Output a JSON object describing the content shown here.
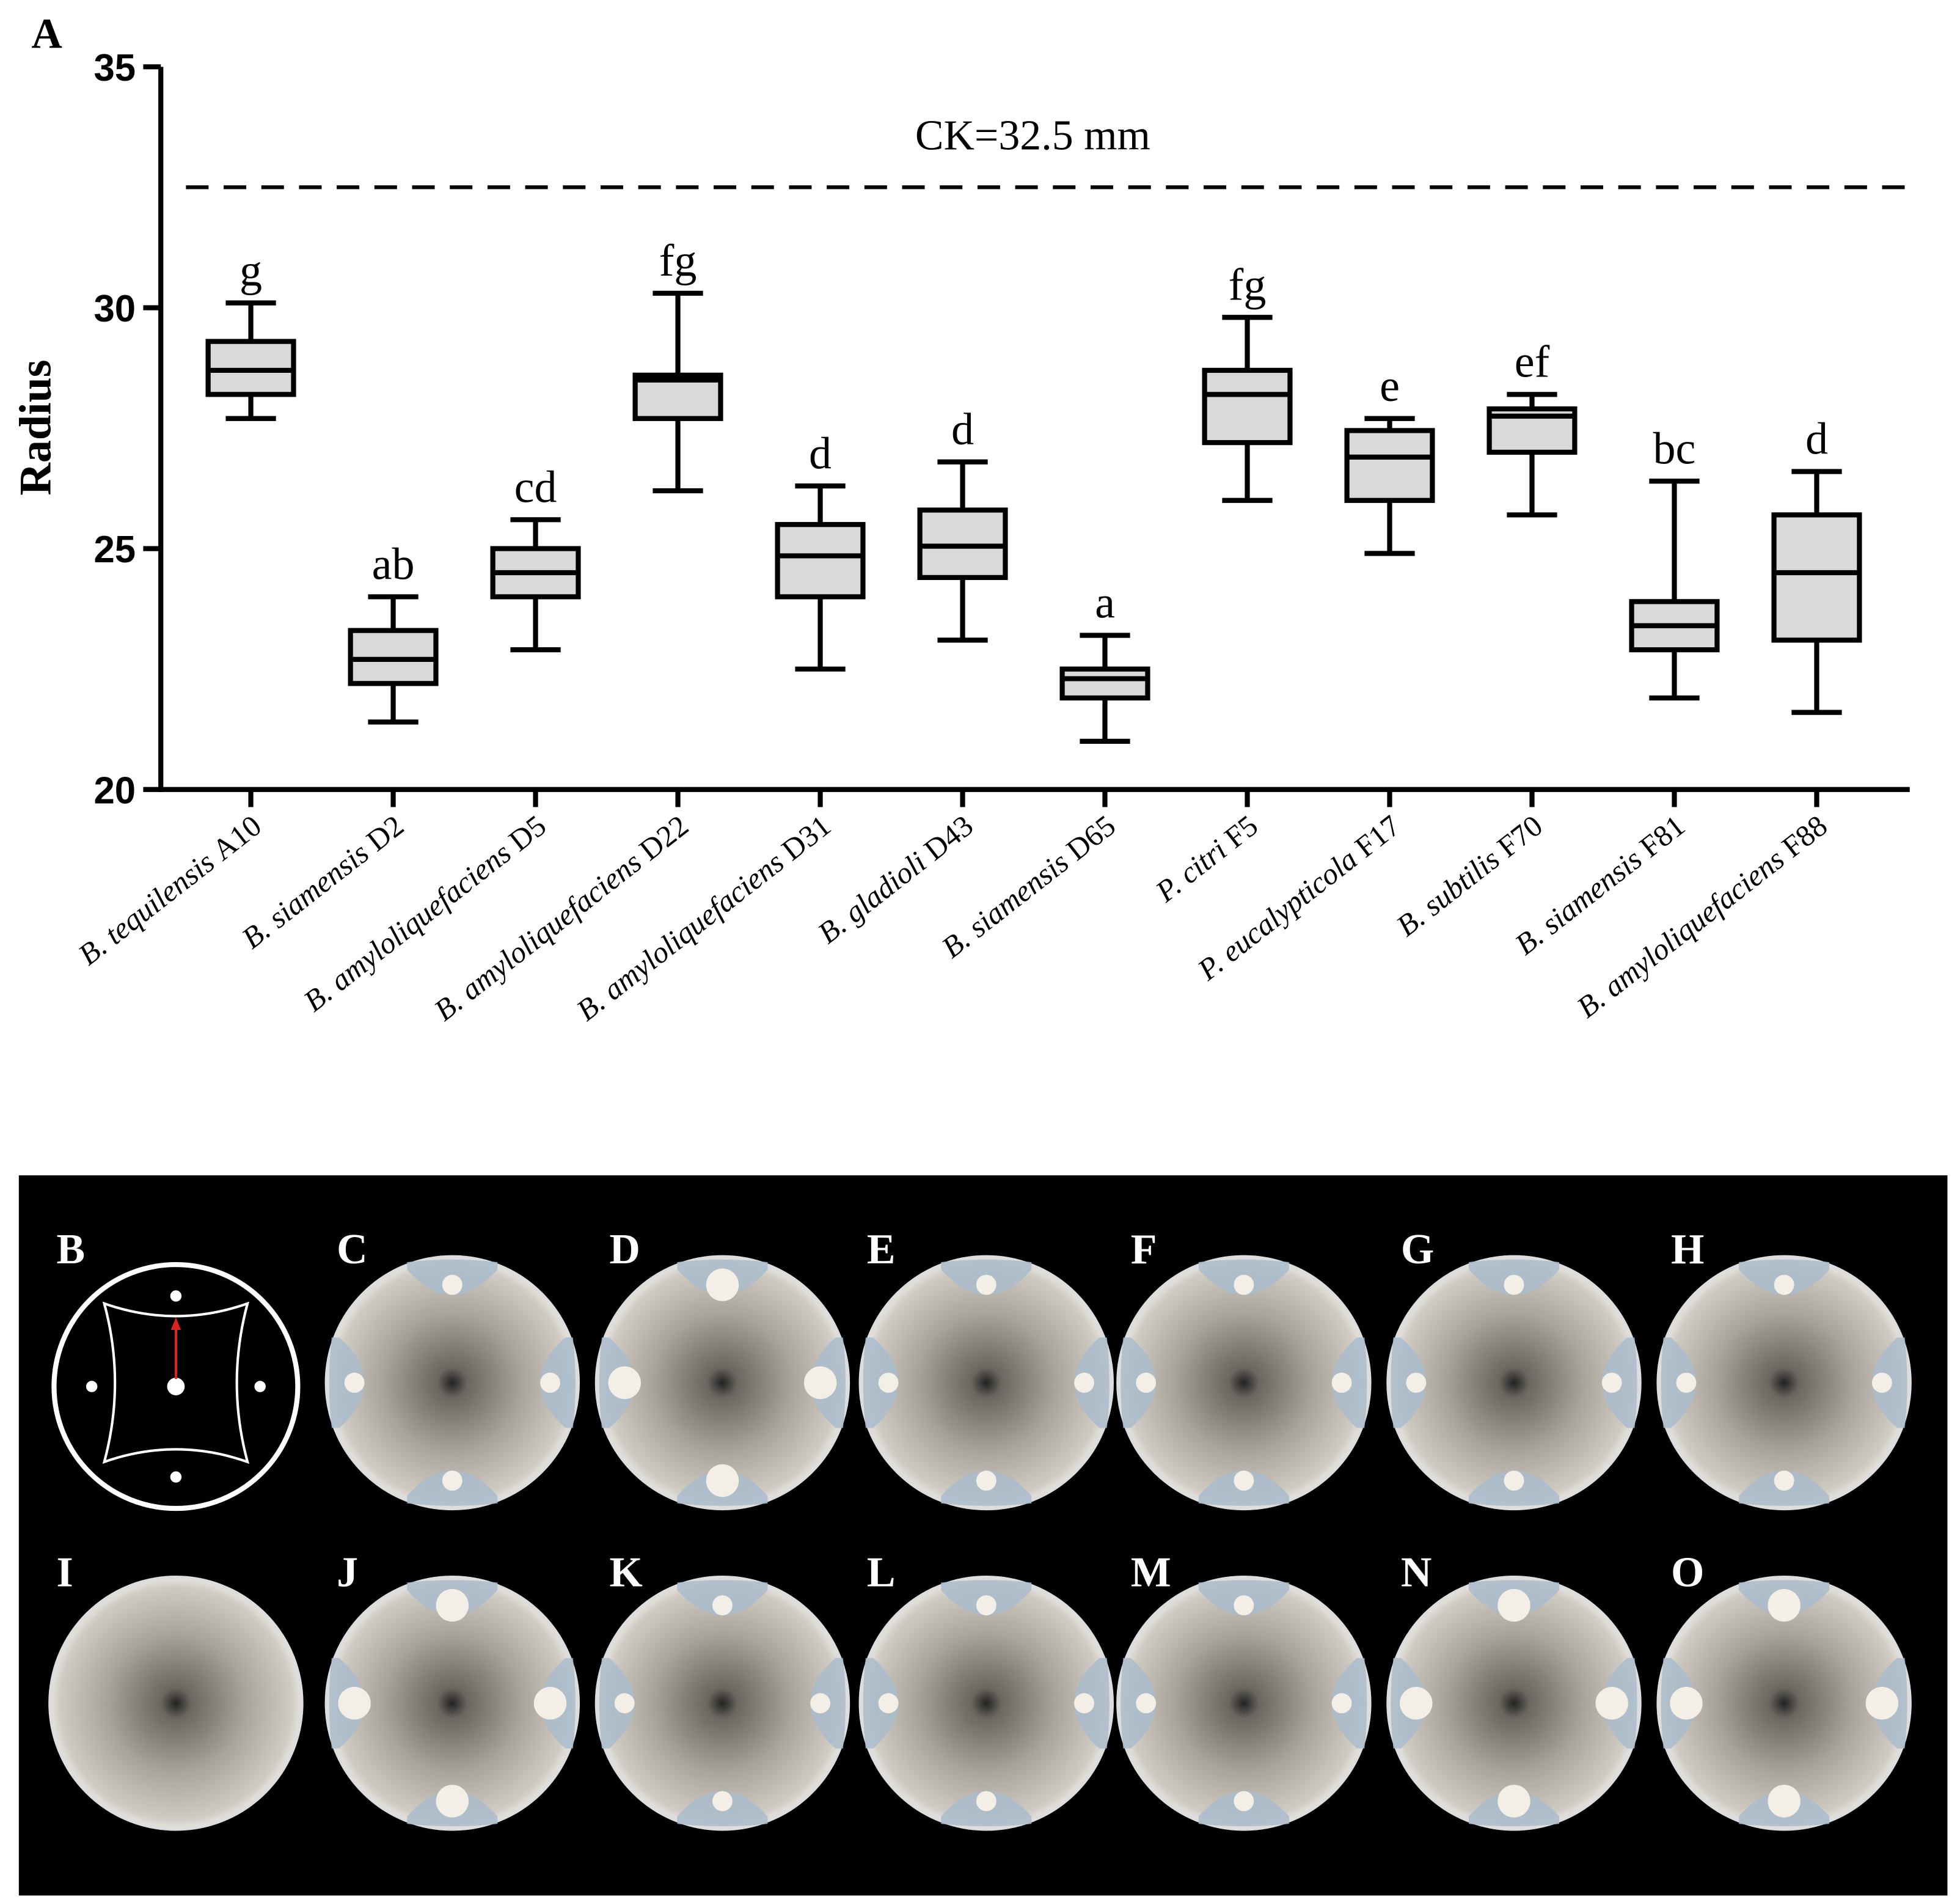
{
  "chart_data": {
    "type": "box",
    "panel_label": "A",
    "ylabel": "Radius",
    "categories": [
      "B. tequilensis A10",
      "B. siamensis D2",
      "B. amyloliquefaciens D5",
      "B. amyloliquefaciens D22",
      "B. amyloliquefaciens D31",
      "B. gladioli D43",
      "B. siamensis D65",
      "P. citri F5",
      "P. eucalypticola F17",
      "B. subtilis F70",
      "B. siamensis F81",
      "B. amyloliquefaciens F88"
    ],
    "boxes": [
      {
        "min": 27.7,
        "q1": 28.2,
        "median": 28.7,
        "q3": 29.3,
        "max": 30.1
      },
      {
        "min": 21.4,
        "q1": 22.2,
        "median": 22.7,
        "q3": 23.3,
        "max": 24.0
      },
      {
        "min": 22.9,
        "q1": 24.0,
        "median": 24.5,
        "q3": 25.0,
        "max": 25.6
      },
      {
        "min": 26.2,
        "q1": 27.7,
        "median": 28.5,
        "q3": 28.6,
        "max": 30.3
      },
      {
        "min": 22.5,
        "q1": 24.0,
        "median": 24.85,
        "q3": 25.5,
        "max": 26.3
      },
      {
        "min": 23.1,
        "q1": 24.4,
        "median": 25.05,
        "q3": 25.8,
        "max": 26.8
      },
      {
        "min": 21.0,
        "q1": 21.9,
        "median": 22.3,
        "q3": 22.5,
        "max": 23.2
      },
      {
        "min": 26.0,
        "q1": 27.2,
        "median": 28.2,
        "q3": 28.7,
        "max": 29.8
      },
      {
        "min": 24.9,
        "q1": 26.0,
        "median": 26.9,
        "q3": 27.45,
        "max": 27.7
      },
      {
        "min": 25.7,
        "q1": 27.0,
        "median": 27.75,
        "q3": 27.9,
        "max": 28.2
      },
      {
        "min": 21.9,
        "q1": 22.9,
        "median": 23.4,
        "q3": 23.9,
        "max": 26.4
      },
      {
        "min": 21.6,
        "q1": 23.1,
        "median": 24.5,
        "q3": 25.7,
        "max": 26.6
      }
    ],
    "group_letters": [
      "g",
      "ab",
      "cd",
      "fg",
      "d",
      "d",
      "a",
      "fg",
      "e",
      "ef",
      "bc",
      "d"
    ],
    "reference_line": {
      "value": 32.5,
      "label": "CK=32.5 mm"
    },
    "box_color": "#d9d9d9",
    "ylim": [
      20,
      35
    ],
    "yticks": [
      20,
      25,
      30,
      35
    ]
  },
  "photo_panels": {
    "labels": [
      "B",
      "C",
      "D",
      "E",
      "F",
      "G",
      "H",
      "I",
      "J",
      "K",
      "L",
      "M",
      "N",
      "O"
    ]
  }
}
